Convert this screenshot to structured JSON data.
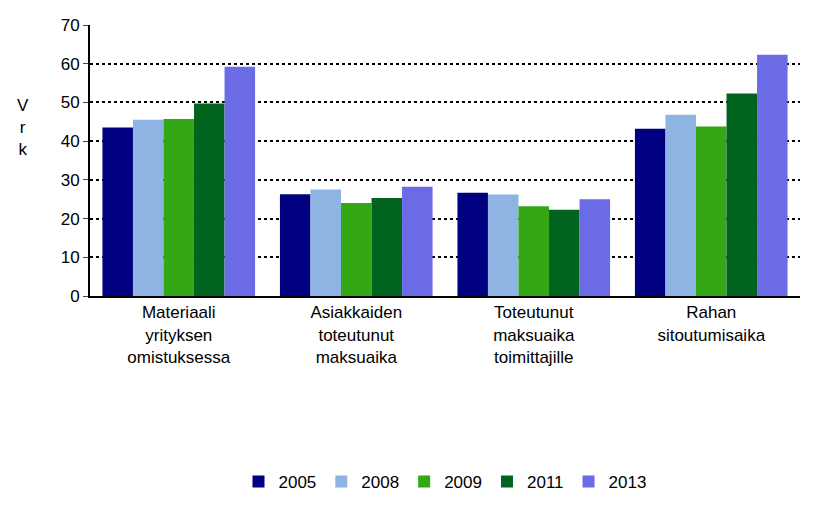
{
  "chart_data": {
    "type": "bar",
    "ylabel": "Vrk",
    "categories": [
      "Materiaali\nyrityksen\nomistuksessa",
      "Asiakkaiden\ntoteutunut\nmaksuaika",
      "Toteutunut\nmaksuaika\ntoimittajille",
      "Rahan\nsitoutumisaika"
    ],
    "series": [
      {
        "name": "2005",
        "color": "#000080",
        "values": [
          43.5,
          26.3,
          26.7,
          43.2
        ]
      },
      {
        "name": "2008",
        "color": "#8DB4E2",
        "values": [
          45.5,
          27.5,
          26.2,
          46.8
        ]
      },
      {
        "name": "2009",
        "color": "#33A814",
        "values": [
          45.7,
          24.0,
          23.2,
          43.8
        ]
      },
      {
        "name": "2011",
        "color": "#00641E",
        "values": [
          49.7,
          25.3,
          22.3,
          52.3
        ]
      },
      {
        "name": "2013",
        "color": "#6B6BE6",
        "values": [
          59.2,
          28.2,
          25.0,
          62.3
        ]
      }
    ],
    "ylim": [
      0,
      70
    ],
    "yticks": [
      0,
      10,
      20,
      30,
      40,
      50,
      60,
      70
    ],
    "grid": true,
    "legend": "bottom"
  }
}
